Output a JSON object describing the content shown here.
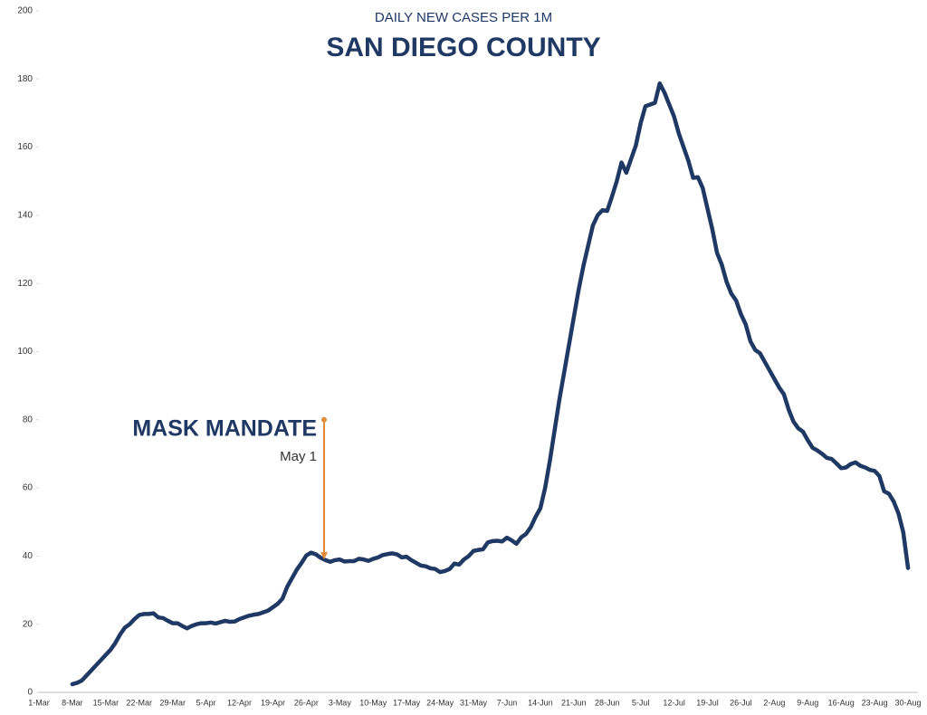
{
  "chart_data": {
    "type": "line",
    "title": "DAILY NEW CASES PER 1M",
    "subtitle": "SAN DIEGO COUNTY",
    "categories": [
      "1-Mar",
      null,
      null,
      null,
      null,
      null,
      null,
      "8-Mar",
      null,
      null,
      null,
      null,
      null,
      null,
      "15-Mar",
      null,
      null,
      null,
      null,
      null,
      null,
      "22-Mar",
      null,
      null,
      null,
      null,
      null,
      null,
      "29-Mar",
      null,
      null,
      null,
      null,
      null,
      null,
      "5-Apr",
      null,
      null,
      null,
      null,
      null,
      null,
      "12-Apr",
      null,
      null,
      null,
      null,
      null,
      null,
      "19-Apr",
      null,
      null,
      null,
      null,
      null,
      null,
      "26-Apr",
      null,
      null,
      null,
      null,
      null,
      null,
      "3-May",
      null,
      null,
      null,
      null,
      null,
      null,
      "10-May",
      null,
      null,
      null,
      null,
      null,
      null,
      "17-May",
      null,
      null,
      null,
      null,
      null,
      null,
      "24-May",
      null,
      null,
      null,
      null,
      null,
      null,
      "31-May",
      null,
      null,
      null,
      null,
      null,
      null,
      "7-Jun",
      null,
      null,
      null,
      null,
      null,
      null,
      "14-Jun",
      null,
      null,
      null,
      null,
      null,
      null,
      "21-Jun",
      null,
      null,
      null,
      null,
      null,
      null,
      "28-Jun",
      null,
      null,
      null,
      null,
      null,
      null,
      "5-Jul",
      null,
      null,
      null,
      null,
      null,
      null,
      "12-Jul",
      null,
      null,
      null,
      null,
      null,
      null,
      "19-Jul",
      null,
      null,
      null,
      null,
      null,
      null,
      "26-Jul",
      null,
      null,
      null,
      null,
      null,
      null,
      "2-Aug",
      null,
      null,
      null,
      null,
      null,
      null,
      "9-Aug",
      null,
      null,
      null,
      null,
      null,
      null,
      "16-Aug",
      null,
      null,
      null,
      null,
      null,
      null,
      "23-Aug",
      null,
      null,
      null,
      null,
      null,
      null,
      "30-Aug",
      null,
      null
    ],
    "series": [
      {
        "name": "San Diego County",
        "color": "#1f3864",
        "values": [
          null,
          null,
          null,
          null,
          null,
          null,
          null,
          2.4,
          2.8,
          3.5,
          5,
          6.5,
          8,
          9.5,
          11,
          12.5,
          14.5,
          17,
          19,
          20,
          21.5,
          22.7,
          23,
          23,
          23.2,
          22,
          21.8,
          21,
          20.3,
          20.3,
          19.5,
          18.8,
          19.5,
          20,
          20.3,
          20.3,
          20.5,
          20.2,
          20.6,
          21,
          20.7,
          20.8,
          21.5,
          22,
          22.5,
          22.8,
          23,
          23.5,
          24,
          25,
          26,
          27.5,
          31,
          33.5,
          36,
          38,
          40.2,
          41,
          40.5,
          39.5,
          38.8,
          38.3,
          38.8,
          39,
          38.4,
          38.5,
          38.5,
          39.2,
          39,
          38.6,
          39.2,
          39.6,
          40.3,
          40.6,
          40.8,
          40.5,
          39.6,
          39.8,
          38.8,
          38,
          37.2,
          37,
          36.4,
          36.2,
          35.3,
          35.6,
          36.2,
          37.8,
          37.5,
          39,
          40,
          41.5,
          41.8,
          42,
          44,
          44.4,
          44.5,
          44.3,
          45.4,
          44.6,
          43.6,
          45.5,
          46.5,
          48.5,
          51.5,
          54,
          60,
          68,
          77,
          86,
          94,
          102,
          110,
          118,
          125,
          131,
          137,
          140,
          141.5,
          141.3,
          145.5,
          150,
          155.5,
          152.5,
          156.5,
          160.5,
          167,
          172,
          172.5,
          173,
          178.7,
          176,
          172.5,
          169,
          164,
          160,
          156,
          151,
          151.2,
          148,
          142,
          136,
          129,
          125.5,
          120.5,
          117,
          115,
          111,
          108,
          103,
          100.5,
          99.5,
          97,
          94.5,
          92,
          89.5,
          87.5,
          83,
          79.5,
          77.5,
          76.5,
          74,
          71.8,
          71,
          70,
          68.8,
          68.5,
          67.2,
          65.8,
          66,
          67,
          67.5,
          66.5,
          66,
          65.3,
          65,
          63.5,
          59,
          58.3,
          56,
          52.5,
          47,
          36.5,
          null,
          null
        ]
      }
    ],
    "ylim": [
      0,
      200
    ],
    "yticks": [
      0,
      20,
      40,
      60,
      80,
      100,
      120,
      140,
      160,
      180,
      200
    ],
    "grid": false,
    "annotation": {
      "text": "MASK MANDATE",
      "subtext": "May 1",
      "color": "#e08a3c",
      "from": 80,
      "to": 39
    }
  }
}
